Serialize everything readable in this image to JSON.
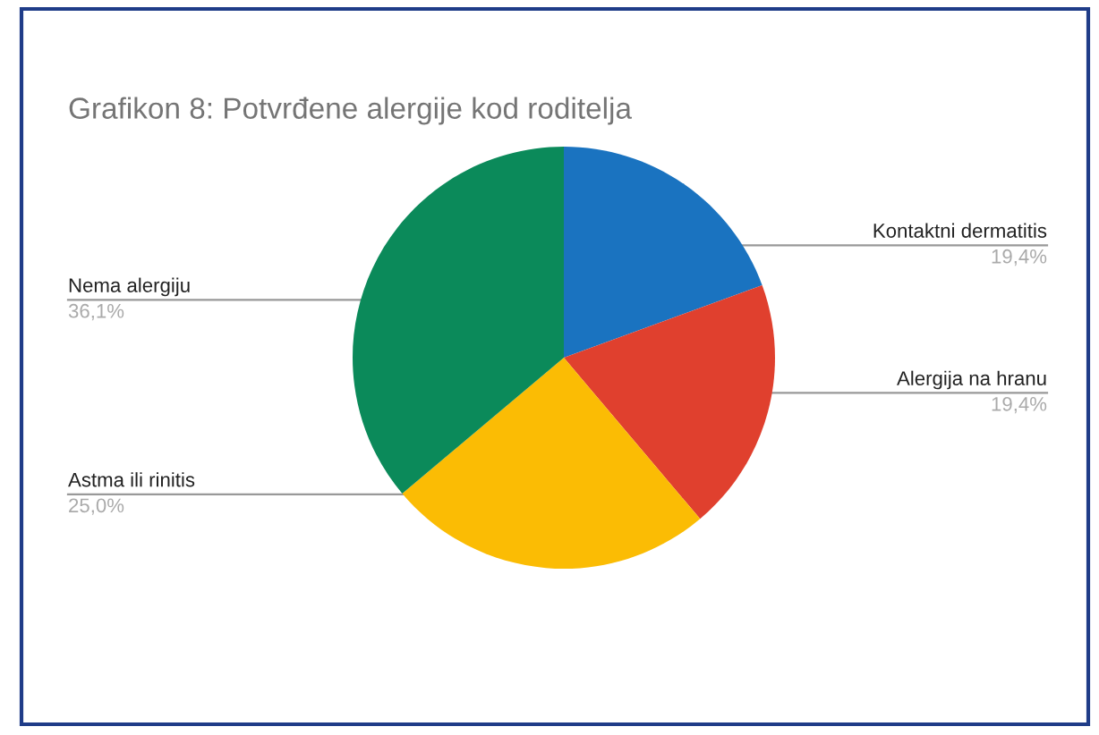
{
  "chart_data": {
    "type": "pie",
    "title": "Grafikon 8: Potvrđene alergije kod roditelja",
    "categories": [
      "Kontaktni dermatitis",
      "Alergija na hranu",
      "Astma ili rinitis",
      "Nema alergiju"
    ],
    "values": [
      19.4,
      19.4,
      25.0,
      36.1
    ],
    "value_labels": [
      "19,4%",
      "19,4%",
      "25,0%",
      "36,1%"
    ],
    "colors": [
      "#1a73c0",
      "#e0402e",
      "#fbbc04",
      "#0b8a5a"
    ]
  }
}
